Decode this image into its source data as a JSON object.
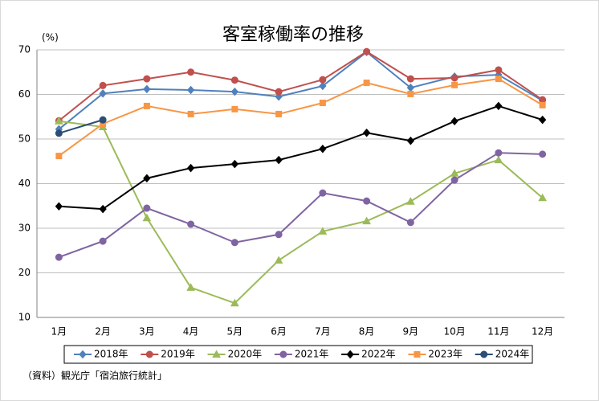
{
  "chart_data": {
    "type": "line",
    "title": "客室稼働率の推移",
    "y_unit": "(%)",
    "source": "（資料）観光庁「宿泊旅行統計」",
    "categories": [
      "1月",
      "2月",
      "3月",
      "4月",
      "5月",
      "6月",
      "7月",
      "8月",
      "9月",
      "10月",
      "11月",
      "12月"
    ],
    "ylim": [
      10,
      70
    ],
    "yticks": [
      10,
      20,
      30,
      40,
      50,
      60,
      70
    ],
    "grid": true,
    "legend": "bottom",
    "series": [
      {
        "name": "2018年",
        "color": "#4f81bd",
        "marker": "diamond",
        "values": [
          52.2,
          60.2,
          61.2,
          61.0,
          60.6,
          59.5,
          61.9,
          69.5,
          61.5,
          64.0,
          64.4,
          58.6
        ]
      },
      {
        "name": "2019年",
        "color": "#c0504d",
        "marker": "circle",
        "values": [
          54.1,
          62.0,
          63.5,
          65.0,
          63.2,
          60.6,
          63.3,
          69.6,
          63.5,
          63.7,
          65.5,
          58.8
        ]
      },
      {
        "name": "2020年",
        "color": "#9bbb59",
        "marker": "triangle",
        "values": [
          54.0,
          52.7,
          32.3,
          16.7,
          13.2,
          22.8,
          29.3,
          31.6,
          36.0,
          42.3,
          45.3,
          36.8
        ]
      },
      {
        "name": "2021年",
        "color": "#8064a2",
        "marker": "circle",
        "values": [
          23.5,
          27.1,
          34.5,
          30.9,
          26.8,
          28.6,
          37.9,
          36.1,
          31.3,
          40.8,
          46.9,
          46.6
        ]
      },
      {
        "name": "2022年",
        "color": "#000000",
        "marker": "diamond",
        "values": [
          34.9,
          34.3,
          41.2,
          43.5,
          44.4,
          45.3,
          47.8,
          51.4,
          49.6,
          54.0,
          57.4,
          54.3
        ]
      },
      {
        "name": "2023年",
        "color": "#f79646",
        "marker": "square",
        "values": [
          46.2,
          53.4,
          57.4,
          55.6,
          56.7,
          55.6,
          58.1,
          62.6,
          60.1,
          62.1,
          63.5,
          57.6
        ]
      },
      {
        "name": "2024年",
        "color": "#2c4d75",
        "marker": "circle",
        "values": [
          51.3,
          54.3,
          null,
          null,
          null,
          null,
          null,
          null,
          null,
          null,
          null,
          null
        ]
      }
    ]
  }
}
